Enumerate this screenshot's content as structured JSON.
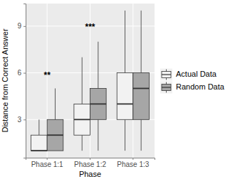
{
  "chart_data": {
    "type": "box",
    "x_label": "Phase",
    "y_label": "Distance from Correct Answer",
    "categories": [
      "Phase 1:1",
      "Phase 1:2",
      "Phase 1:3"
    ],
    "series": [
      {
        "name": "Actual Data",
        "color": "#f2f2f2",
        "values": [
          {
            "min": 1,
            "q1": 1,
            "median": 1,
            "q3": 2,
            "max": 3
          },
          {
            "min": 1,
            "q1": 2,
            "median": 3,
            "q3": 4,
            "max": 7
          },
          {
            "min": 1,
            "q1": 3,
            "median": 4,
            "q3": 6,
            "max": 10
          }
        ]
      },
      {
        "name": "Random Data",
        "color": "#a6a6a6",
        "values": [
          {
            "min": 1,
            "q1": 1,
            "median": 2,
            "q3": 3,
            "max": 5
          },
          {
            "min": 1,
            "q1": 3,
            "median": 4,
            "q3": 5,
            "max": 8
          },
          {
            "min": 1,
            "q1": 3,
            "median": 5,
            "q3": 6,
            "max": 10
          }
        ]
      }
    ],
    "annotations": [
      {
        "text": "**",
        "x": "Phase 1:1",
        "y": 5.8
      },
      {
        "text": "***",
        "x": "Phase 1:2",
        "y": 8.9
      }
    ],
    "ylim": [
      0.55,
      10.45
    ],
    "yticks": [
      3,
      6,
      9
    ],
    "grid": true,
    "legend": "right"
  }
}
